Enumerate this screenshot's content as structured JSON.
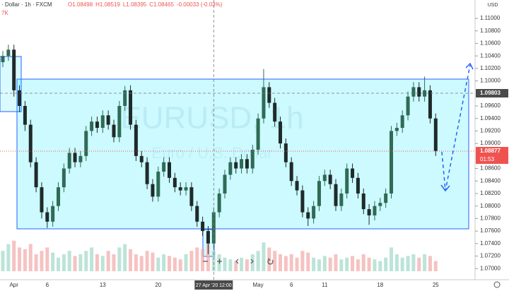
{
  "chart_data": {
    "type": "candlestick",
    "symbol_label": "· Dollar · 1h · FXCM",
    "ohlc_label": [
      "O1.08498",
      "H1.08519",
      "L1.08395",
      "C1.08465",
      "-0.00033 (-0.03%)"
    ],
    "volume_label": "7K",
    "currency": "USD",
    "watermark": "EURUSD, 1h",
    "watermark_subtitle": "Euro / U.S. Dollar",
    "crosshair_time": "27 Apr '20 12:00",
    "crosshair_index": 38,
    "crosshair_price": 1.09803,
    "last_price": 1.08877,
    "countdown": "01:53",
    "up_color": "#2f6b55",
    "down_color": "#1f2a2a",
    "volume_up_color": "#9fd8c8",
    "volume_down_color": "#f2a8a8",
    "ylim": [
      1.06822,
      1.11294
    ],
    "yticks": [
      {
        "value": 1.11,
        "label": "1.11000"
      },
      {
        "value": 1.108,
        "label": "1.10800"
      },
      {
        "value": 1.106,
        "label": "1.10600"
      },
      {
        "value": 1.104,
        "label": "1.10400"
      },
      {
        "value": 1.102,
        "label": "1.10200"
      },
      {
        "value": 1.1,
        "label": "1.10000"
      },
      {
        "value": 1.096,
        "label": "1.09600"
      },
      {
        "value": 1.094,
        "label": "1.09400"
      },
      {
        "value": 1.092,
        "label": "1.09200"
      },
      {
        "value": 1.09,
        "label": "1.09000"
      },
      {
        "value": 1.086,
        "label": "1.08600"
      },
      {
        "value": 1.084,
        "label": "1.08400"
      },
      {
        "value": 1.082,
        "label": "1.08200"
      },
      {
        "value": 1.08,
        "label": "1.08000"
      },
      {
        "value": 1.078,
        "label": "1.07800"
      },
      {
        "value": 1.076,
        "label": "1.07600"
      },
      {
        "value": 1.074,
        "label": "1.07400"
      },
      {
        "value": 1.072,
        "label": "1.07200"
      },
      {
        "value": 1.07,
        "label": "1.07000"
      }
    ],
    "categories": [
      null,
      null,
      "Apr",
      null,
      null,
      null,
      null,
      null,
      "6",
      null,
      null,
      null,
      null,
      null,
      null,
      null,
      null,
      null,
      "13",
      null,
      null,
      null,
      null,
      null,
      null,
      null,
      null,
      null,
      "20",
      null,
      null,
      null,
      null,
      null,
      null,
      null,
      null,
      null,
      null,
      null,
      null,
      null,
      null,
      null,
      null,
      null,
      "May",
      null,
      null,
      null,
      null,
      null,
      "6",
      null,
      null,
      null,
      null,
      null,
      "11",
      null,
      null,
      null,
      null,
      null,
      null,
      null,
      null,
      null,
      "18",
      null,
      null,
      null,
      null,
      null,
      null,
      null,
      null,
      null,
      "25"
    ],
    "candles": [
      [
        1.103,
        1.1048,
        1.1022,
        1.104
      ],
      [
        1.104,
        1.1058,
        1.1032,
        1.105
      ],
      [
        1.105,
        1.1058,
        1.0975,
        1.0985
      ],
      [
        1.0985,
        1.0993,
        1.095,
        1.096
      ],
      [
        1.096,
        1.0968,
        1.092,
        1.093
      ],
      [
        1.093,
        1.0938,
        1.0862,
        1.087
      ],
      [
        1.087,
        1.0878,
        1.0822,
        1.083
      ],
      [
        1.083,
        1.0838,
        1.078,
        1.079
      ],
      [
        1.079,
        1.0798,
        1.0765,
        1.0775
      ],
      [
        1.0775,
        1.0808,
        1.0767,
        1.08
      ],
      [
        1.08,
        1.0838,
        1.0792,
        1.083
      ],
      [
        1.083,
        1.0868,
        1.0822,
        1.086
      ],
      [
        1.086,
        1.0893,
        1.0852,
        1.0885
      ],
      [
        1.0885,
        1.0893,
        1.0862,
        1.087
      ],
      [
        1.087,
        1.0888,
        1.0862,
        1.088
      ],
      [
        1.088,
        1.0928,
        1.0872,
        1.092
      ],
      [
        1.092,
        1.0943,
        1.0912,
        1.0935
      ],
      [
        1.0935,
        1.0943,
        1.0917,
        1.0925
      ],
      [
        1.0925,
        1.0953,
        1.0917,
        1.0945
      ],
      [
        1.0945,
        1.0953,
        1.0922,
        1.093
      ],
      [
        1.093,
        1.0938,
        1.0902,
        1.091
      ],
      [
        1.091,
        1.0968,
        1.0902,
        1.096
      ],
      [
        1.096,
        1.0992,
        1.0952,
        1.0985
      ],
      [
        1.0985,
        1.0993,
        1.0922,
        1.093
      ],
      [
        1.093,
        1.0938,
        1.0872,
        1.088
      ],
      [
        1.088,
        1.0888,
        1.0862,
        1.087
      ],
      [
        1.087,
        1.0878,
        1.0827,
        1.0835
      ],
      [
        1.0835,
        1.0843,
        1.0807,
        1.0815
      ],
      [
        1.0815,
        1.0863,
        1.0807,
        1.0855
      ],
      [
        1.0855,
        1.0878,
        1.0847,
        1.087
      ],
      [
        1.087,
        1.0878,
        1.0837,
        1.0845
      ],
      [
        1.0845,
        1.0853,
        1.0822,
        1.083
      ],
      [
        1.083,
        1.0838,
        1.0817,
        1.0825
      ],
      [
        1.0825,
        1.0838,
        1.0817,
        1.083
      ],
      [
        1.083,
        1.0838,
        1.0792,
        1.08
      ],
      [
        1.08,
        1.0808,
        1.0767,
        1.0775
      ],
      [
        1.0775,
        1.0783,
        1.0752,
        1.076
      ],
      [
        1.076,
        1.0768,
        1.0723,
        1.074
      ],
      [
        1.074,
        1.0798,
        1.0732,
        1.079
      ],
      [
        1.079,
        1.0828,
        1.0782,
        1.082
      ],
      [
        1.082,
        1.0858,
        1.0812,
        1.085
      ],
      [
        1.085,
        1.0878,
        1.0842,
        1.087
      ],
      [
        1.087,
        1.0878,
        1.0852,
        1.086
      ],
      [
        1.086,
        1.0883,
        1.0852,
        1.0875
      ],
      [
        1.0875,
        1.0883,
        1.0852,
        1.086
      ],
      [
        1.086,
        1.0898,
        1.0852,
        1.089
      ],
      [
        1.089,
        1.0948,
        1.0882,
        1.094
      ],
      [
        1.094,
        1.1019,
        1.0932,
        1.099
      ],
      [
        1.099,
        1.0998,
        1.0957,
        1.0965
      ],
      [
        1.0965,
        1.0973,
        1.0927,
        1.0935
      ],
      [
        1.0935,
        1.0943,
        1.0892,
        1.09
      ],
      [
        1.09,
        1.0908,
        1.0862,
        1.087
      ],
      [
        1.087,
        1.0878,
        1.0832,
        1.084
      ],
      [
        1.084,
        1.0848,
        1.0817,
        1.0825
      ],
      [
        1.0825,
        1.0833,
        1.0782,
        1.079
      ],
      [
        1.079,
        1.0798,
        1.0768,
        1.078
      ],
      [
        1.078,
        1.0808,
        1.0772,
        1.08
      ],
      [
        1.08,
        1.0848,
        1.0792,
        1.084
      ],
      [
        1.084,
        1.0858,
        1.0832,
        1.085
      ],
      [
        1.085,
        1.0858,
        1.0827,
        1.0835
      ],
      [
        1.0835,
        1.0843,
        1.0792,
        1.08
      ],
      [
        1.08,
        1.0828,
        1.0792,
        1.082
      ],
      [
        1.082,
        1.0868,
        1.0812,
        1.086
      ],
      [
        1.086,
        1.0868,
        1.0837,
        1.0845
      ],
      [
        1.0845,
        1.0853,
        1.0812,
        1.082
      ],
      [
        1.082,
        1.0828,
        1.0787,
        1.0795
      ],
      [
        1.0795,
        1.0803,
        1.077,
        1.0785
      ],
      [
        1.0785,
        1.0808,
        1.0777,
        1.08
      ],
      [
        1.08,
        1.0813,
        1.0792,
        1.0805
      ],
      [
        1.0805,
        1.0828,
        1.0797,
        1.082
      ],
      [
        1.082,
        1.0928,
        1.0812,
        1.092
      ],
      [
        1.092,
        1.0933,
        1.0912,
        1.0925
      ],
      [
        1.0925,
        1.0953,
        1.0917,
        1.0945
      ],
      [
        1.0945,
        1.0983,
        1.0937,
        1.0975
      ],
      [
        1.0975,
        1.0998,
        1.0967,
        1.099
      ],
      [
        1.099,
        1.0998,
        1.0967,
        1.0975
      ],
      [
        1.0975,
        1.1007,
        1.0967,
        1.0985
      ],
      [
        1.0985,
        1.0993,
        1.0932,
        1.094
      ],
      [
        1.094,
        1.0948,
        1.088,
        1.0888
      ]
    ],
    "volume_ylim": [
      0,
      20000
    ],
    "volumes": [
      6000,
      8000,
      9000,
      7000,
      6500,
      8000,
      5000,
      6000,
      7000,
      5500,
      4000,
      5000,
      6000,
      4500,
      5000,
      6000,
      7000,
      5000,
      4500,
      6000,
      5000,
      7000,
      8000,
      6500,
      5000,
      4500,
      6000,
      5500,
      4000,
      5000,
      4500,
      4000,
      3500,
      5000,
      6000,
      7000,
      6500,
      8000,
      6000,
      5000,
      4000,
      3500,
      3000,
      4000,
      3500,
      5000,
      6000,
      8500,
      7000,
      6000,
      5000,
      4500,
      5000,
      4000,
      6000,
      5500,
      4000,
      3500,
      4500,
      4000,
      5000,
      3500,
      4000,
      4500,
      3500,
      5000,
      4000,
      3500,
      3000,
      4000,
      7000,
      5000,
      4000,
      4500,
      5000,
      4000,
      5000,
      4500,
      3000
    ]
  }
}
